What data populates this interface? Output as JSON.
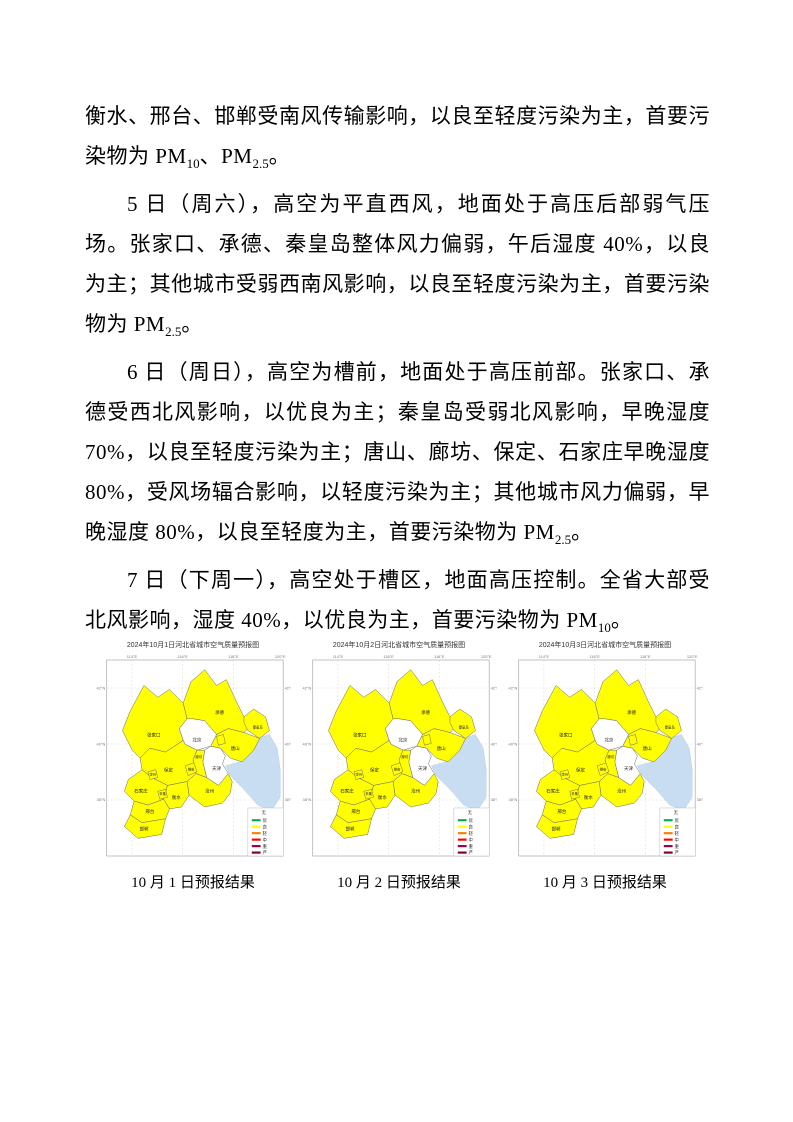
{
  "document": {
    "paragraphs": [
      {
        "indent": false,
        "runs": [
          {
            "t": "衡水、邢台、邯郸受南风传输影响，以良至轻度污染为主，首要污染物为 PM"
          },
          {
            "t": "10",
            "sub": true
          },
          {
            "t": "、PM"
          },
          {
            "t": "2.5",
            "sub": true
          },
          {
            "t": "。"
          }
        ]
      },
      {
        "indent": true,
        "runs": [
          {
            "t": "5 日（周六），高空为平直西风，地面处于高压后部弱气压场。张家口、承德、秦皇岛整体风力偏弱，午后湿度 40%，以良为主；其他城市受弱西南风影响，以良至轻度污染为主，首要污染物为 PM"
          },
          {
            "t": "2.5",
            "sub": true
          },
          {
            "t": "。"
          }
        ]
      },
      {
        "indent": true,
        "runs": [
          {
            "t": "6 日（周日），高空为槽前，地面处于高压前部。张家口、承德受西北风影响，以优良为主；秦皇岛受弱北风影响，早晚湿度 70%，以良至轻度污染为主；唐山、廊坊、保定、石家庄早晚湿度 80%，受风场辐合影响，以轻度污染为主；其他城市风力偏弱，早晚湿度 80%，以良至轻度为主，首要污染物为 PM"
          },
          {
            "t": "2.5",
            "sub": true
          },
          {
            "t": "。"
          }
        ]
      },
      {
        "indent": true,
        "runs": [
          {
            "t": "7 日（下周一），高空处于槽区，地面高压控制。全省大部受北风影响，湿度 40%，以优良为主，首要污染物为 PM"
          },
          {
            "t": "10",
            "sub": true
          },
          {
            "t": "。"
          }
        ]
      }
    ]
  },
  "maps": [
    {
      "title": "2024年10月1日河北省城市空气质量预报图",
      "caption": "10 月 1 日预报结果"
    },
    {
      "title": "2024年10月2日河北省城市空气质量预报图",
      "caption": "10 月 2 日预报结果"
    },
    {
      "title": "2024年10月3日河北省城市空气质量预报图",
      "caption": "10 月 3 日预报结果"
    }
  ],
  "map_common": {
    "regions": [
      {
        "id": "sea",
        "name": "",
        "color": "#C9DDF2"
      },
      {
        "id": "zhangjiakou",
        "name": "张家口",
        "color": "#FFFF00"
      },
      {
        "id": "chengde",
        "name": "承德",
        "color": "#FFFF00"
      },
      {
        "id": "qinhuangdao",
        "name": "秦皇岛",
        "color": "#FFFF00"
      },
      {
        "id": "tangshan",
        "name": "唐山",
        "color": "#FFFF00"
      },
      {
        "id": "beijing",
        "name": "北京",
        "color": "#FFFFFF"
      },
      {
        "id": "tianjin",
        "name": "天津",
        "color": "#FFFFFF"
      },
      {
        "id": "langfang",
        "name": "廊坊",
        "color": "#FFFF00"
      },
      {
        "id": "langfang_ex",
        "name": "",
        "color": "#FFFF00"
      },
      {
        "id": "baoding",
        "name": "保定",
        "color": "#FFFF00"
      },
      {
        "id": "xiongan",
        "name": "雄安",
        "color": "#FFFF00"
      },
      {
        "id": "dingzhou",
        "name": "定州",
        "color": "#FFFF00"
      },
      {
        "id": "shijiazhuang",
        "name": "石家庄",
        "color": "#FFFF00"
      },
      {
        "id": "xinji",
        "name": "辛集",
        "color": "#FFFF00"
      },
      {
        "id": "cangzhou",
        "name": "沧州",
        "color": "#FFFF00"
      },
      {
        "id": "hengshui",
        "name": "衡水",
        "color": "#FFFF00"
      },
      {
        "id": "xingtai",
        "name": "邢台",
        "color": "#FFFF00"
      },
      {
        "id": "handan",
        "name": "邯郸",
        "color": "#FFFF00"
      }
    ],
    "legend": {
      "header": "无",
      "items": [
        {
          "label": "优",
          "color": "#00B050"
        },
        {
          "label": "良",
          "color": "#FFFF00"
        },
        {
          "label": "轻",
          "color": "#FF7E00"
        },
        {
          "label": "中",
          "color": "#FF0000"
        },
        {
          "label": "重",
          "color": "#99004C"
        },
        {
          "label": "严",
          "color": "#7E0023"
        }
      ]
    },
    "axis": {
      "top": [
        "114°E",
        "116°E",
        "118°E",
        "120°E"
      ],
      "side": [
        "42°N",
        "40°N",
        "38°N"
      ]
    }
  }
}
